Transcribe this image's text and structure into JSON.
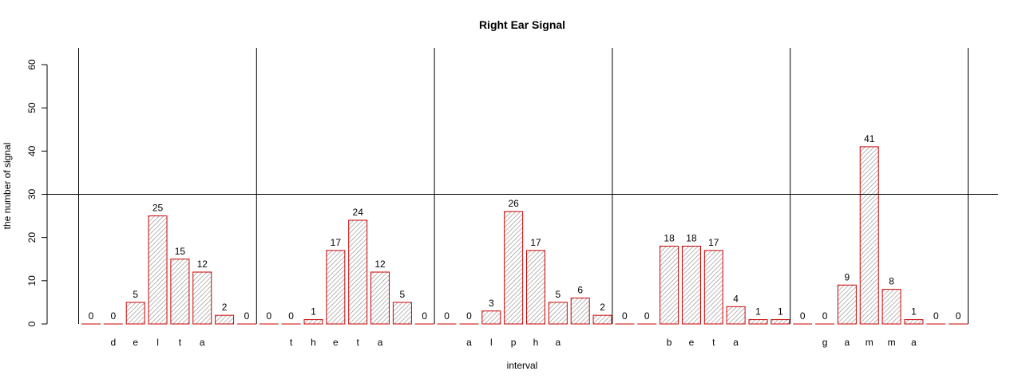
{
  "chart_data": {
    "type": "bar",
    "title": "Right Ear Signal",
    "xlabel": "interval",
    "ylabel": "the number of signal",
    "ylim": [
      0,
      60
    ],
    "y_ticks": [
      "0",
      "10",
      "20",
      "30",
      "40",
      "50",
      "60"
    ],
    "reference_line_y": 30,
    "bar_fill": "hatched gray",
    "bar_border_color": "#cc0000",
    "values": [
      0,
      0,
      5,
      25,
      15,
      12,
      2,
      0,
      0,
      0,
      1,
      17,
      24,
      12,
      5,
      0,
      0,
      0,
      3,
      26,
      17,
      5,
      6,
      2,
      0,
      0,
      18,
      18,
      17,
      4,
      1,
      1,
      0,
      0,
      9,
      41,
      8,
      1,
      0,
      0
    ],
    "category_letters": [
      "",
      "d",
      "e",
      "l",
      "t",
      "a",
      "",
      "",
      "",
      "t",
      "h",
      "e",
      "t",
      "a",
      "",
      "",
      "",
      "a",
      "l",
      "p",
      "h",
      "a",
      "",
      "",
      "",
      "",
      "b",
      "e",
      "t",
      "a",
      "",
      "",
      "",
      "g",
      "a",
      "m",
      "m",
      "a",
      "",
      ""
    ]
  }
}
